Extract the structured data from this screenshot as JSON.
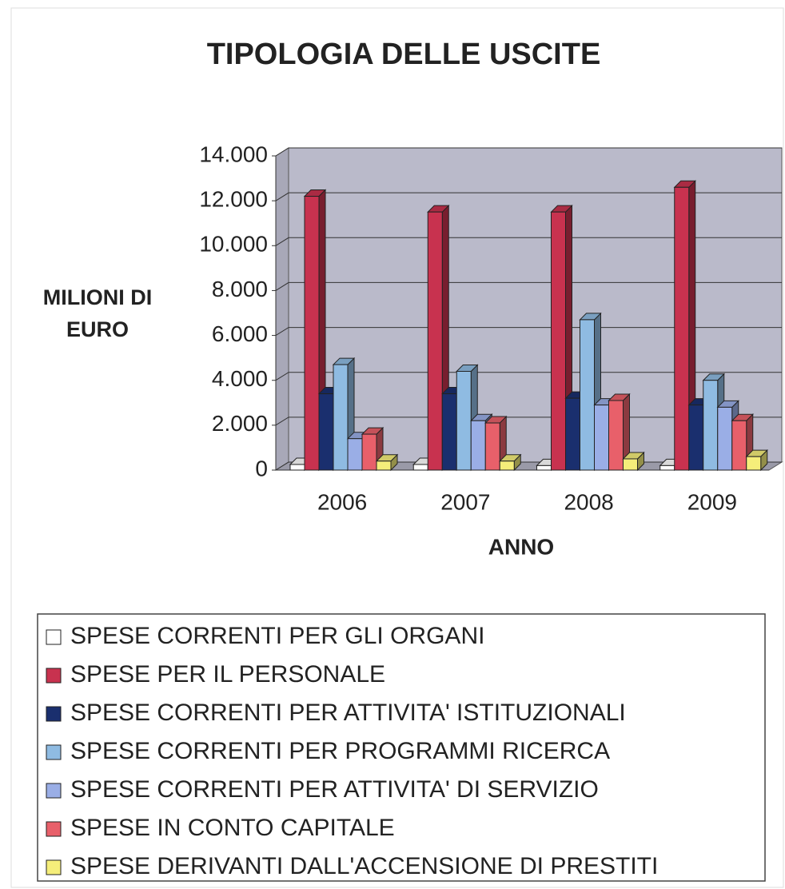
{
  "chart_data": {
    "type": "bar3d",
    "title": "TIPOLOGIA DELLE USCITE",
    "ylabel_lines": [
      "MILIONI DI",
      "EURO"
    ],
    "xlabel": "ANNO",
    "categories": [
      "2006",
      "2007",
      "2008",
      "2009"
    ],
    "ylim": [
      0,
      14000
    ],
    "yticks": [
      0,
      {
        "value": 2000,
        "label": "2.000"
      },
      {
        "value": 4000,
        "label": "4.000"
      },
      {
        "value": 6000,
        "label": "6.000"
      },
      {
        "value": 8000,
        "label": "8.000"
      },
      {
        "value": 10000,
        "label": "10.000"
      },
      {
        "value": 12000,
        "label": "12.000"
      },
      {
        "value": 14000,
        "label": "14.000"
      }
    ],
    "grid": true,
    "legend": "bottom",
    "series": [
      {
        "name": "SPESE CORRENTI PER GLI ORGANI",
        "color": "#ffffff",
        "values": [
          250,
          250,
          200,
          200
        ]
      },
      {
        "name": "SPESE PER IL PERSONALE",
        "color": "#c8324f",
        "values": [
          12200,
          11500,
          11500,
          12600
        ]
      },
      {
        "name": "SPESE CORRENTI PER ATTIVITA' ISTITUZIONALI",
        "color": "#1a2f6e",
        "values": [
          3400,
          3400,
          3200,
          2900
        ]
      },
      {
        "name": "SPESE CORRENTI PER PROGRAMMI RICERCA",
        "color": "#8fbbe2",
        "values": [
          4700,
          4400,
          6700,
          4000
        ]
      },
      {
        "name": "SPESE CORRENTI PER ATTIVITA' DI SERVIZIO",
        "color": "#9aaee6",
        "values": [
          1400,
          2200,
          2900,
          2800
        ]
      },
      {
        "name": "SPESE IN CONTO CAPITALE",
        "color": "#e8606a",
        "values": [
          1600,
          2100,
          3100,
          2200
        ]
      },
      {
        "name": "SPESE DERIVANTI DALL'ACCENSIONE DI PRESTITI",
        "color": "#f5ee7a",
        "values": [
          400,
          400,
          500,
          600
        ]
      }
    ]
  }
}
